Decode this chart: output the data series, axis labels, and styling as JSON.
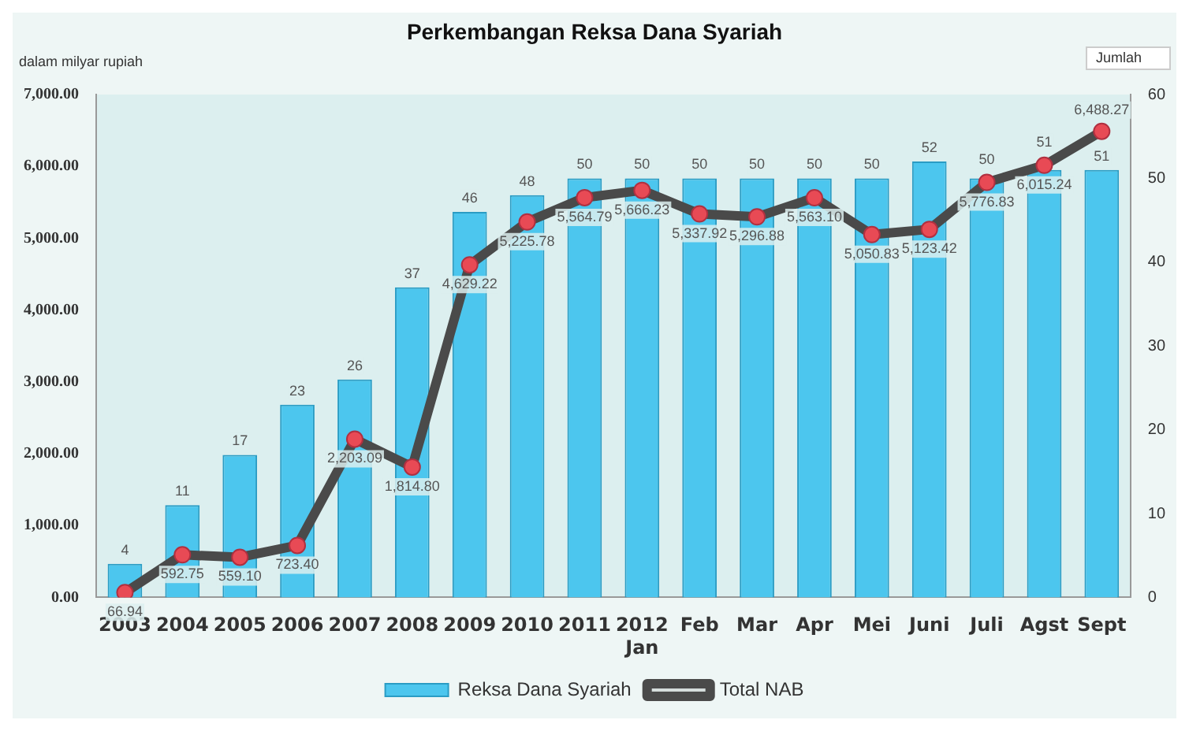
{
  "chart_data": {
    "type": "bar",
    "title": "Perkembangan Reksa Dana Syariah",
    "ylabel": "dalam milyar rupiah",
    "annotations": [
      "Jumlah"
    ],
    "categories": [
      "2003",
      "2004",
      "2005",
      "2006",
      "2007",
      "2008",
      "2009",
      "2010",
      "2011",
      "2012\nJan",
      "Feb",
      "Mar",
      "Apr",
      "Mei",
      "Juni",
      "Juli",
      "Agst",
      "Sept"
    ],
    "series": [
      {
        "name": "Reksa Dana Syariah",
        "axis": "y2",
        "color": "#4cc6ee",
        "values": [
          4,
          11,
          17,
          23,
          26,
          37,
          46,
          48,
          50,
          50,
          50,
          50,
          50,
          50,
          52,
          50,
          51,
          51
        ],
        "value_labels": [
          "4",
          "11",
          "17",
          "23",
          "26",
          "37",
          "46",
          "48",
          "50",
          "50",
          "50",
          "50",
          "50",
          "50",
          "52",
          "50",
          "51",
          "51"
        ]
      },
      {
        "name": "Total NAB",
        "type": "line",
        "axis": "y",
        "color": "#4a4a4a",
        "values": [
          66.94,
          592.75,
          559.1,
          723.4,
          2203.09,
          1814.8,
          4629.22,
          5225.78,
          5564.79,
          5666.23,
          5337.92,
          5296.88,
          5563.1,
          5050.83,
          5123.42,
          5776.83,
          6015.24,
          6488.27
        ],
        "value_labels": [
          "66.94",
          "592.75",
          "559.10",
          "723.40",
          "2,203.09",
          "1,814.80",
          "4,629.22",
          "5,225.78",
          "5,564.79",
          "5,666.23",
          "5,337.92",
          "5,296.88",
          "5,563.10",
          "5,050.83",
          "5,123.42",
          "5,776.83",
          "6,015.24",
          "6,488.27"
        ]
      }
    ],
    "ylim": [
      0,
      7000
    ],
    "yticks": [
      {
        "value": 0,
        "label": "0.00"
      },
      {
        "value": 1000,
        "label": "1,000.00"
      },
      {
        "value": 2000,
        "label": "2,000.00"
      },
      {
        "value": 3000,
        "label": "3,000.00"
      },
      {
        "value": 4000,
        "label": "4,000.00"
      },
      {
        "value": 5000,
        "label": "5,000.00"
      },
      {
        "value": 6000,
        "label": "6,000.00"
      },
      {
        "value": 7000,
        "label": "7,000.00"
      }
    ],
    "y2lim": [
      0,
      60
    ],
    "y2ticks": [
      0,
      10,
      20,
      30,
      40,
      50,
      60
    ],
    "marker": "circle",
    "legend": "bottom",
    "grid": false
  }
}
